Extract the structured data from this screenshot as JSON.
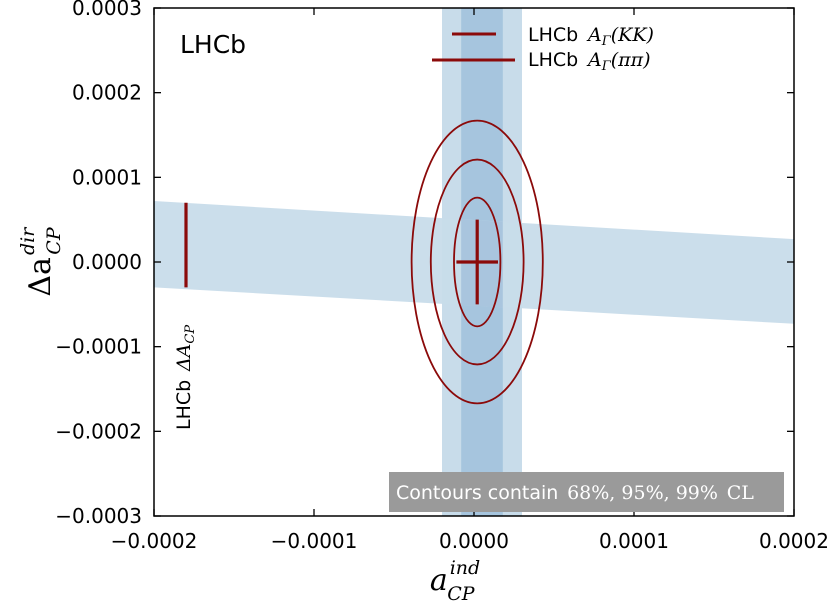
{
  "chart_data": {
    "type": "scatter",
    "title": "",
    "experiment_label": "LHCb",
    "xlabel": {
      "base": "a",
      "sub": "CP",
      "sup": "ind"
    },
    "ylabel": {
      "base": "Δa",
      "sub": "CP",
      "sup": "dir"
    },
    "xlim": [
      -0.0002,
      0.0002
    ],
    "ylim": [
      -0.0003,
      0.0003
    ],
    "x_ticks": [
      -0.0002,
      -0.0001,
      0.0,
      0.0001,
      0.0002
    ],
    "x_tick_labels": [
      "−0.0002",
      "−0.0001",
      "0.0000",
      "0.0001",
      "0.0002"
    ],
    "y_ticks": [
      -0.0003,
      -0.0002,
      -0.0001,
      0.0,
      0.0001,
      0.0002,
      0.0003
    ],
    "y_tick_labels": [
      "−0.0003",
      "−0.0002",
      "−0.0001",
      "0.0000",
      "0.0001",
      "0.0002",
      "0.0003"
    ],
    "grid": false,
    "bands": {
      "AGamma_KK_vertical": {
        "center": 5e-06,
        "half_width_1": 1.3e-05,
        "half_width_2": 2.5e-05
      },
      "DeltaACP_slanted": {
        "upper_at_xmin": 7.2e-05,
        "lower_at_xmin": -3e-05,
        "upper_at_xmax": 2.7e-05,
        "lower_at_xmax": -7.3e-05
      }
    },
    "central_value": {
      "x": 2e-06,
      "y": 0.0
    },
    "central_errors": {
      "x": 1.3e-05,
      "y": 5e-05
    },
    "contours": [
      {
        "cl": "68%",
        "x_half": 1.45e-05,
        "y_half": 7.6e-05
      },
      {
        "cl": "95%",
        "x_half": 2.9e-05,
        "y_half": 0.000121
      },
      {
        "cl": "99%",
        "x_half": 4.1e-05,
        "y_half": 0.000167
      }
    ],
    "delta_acp_marker": {
      "x": -0.00018,
      "y_low": -3e-05,
      "y_high": 7e-05
    },
    "legend": [
      {
        "prefix": "LHCb",
        "math_base": "A",
        "math_sub": "Γ",
        "math_arg": "(KK)",
        "line": "short"
      },
      {
        "prefix": "LHCb",
        "math_base": "A",
        "math_sub": "Γ",
        "math_arg": "(ππ)",
        "line": "long"
      }
    ],
    "legend_placement": "top-right",
    "annotation_delta_acp": {
      "prefix": "LHCb",
      "math_base": "ΔA",
      "math_sub": "CP"
    },
    "footer_note": {
      "prefix": "Contours contain",
      "levels": "68%, 95%, 99%",
      "suffix": "CL"
    },
    "colors": {
      "band_light": "#c8dcea",
      "band_dark": "#a6c5de",
      "overlap": "#8fb3d3",
      "contour": "#8b0a0a",
      "marker": "#8b0a0a",
      "note_bg": "#9a9a9a"
    }
  }
}
